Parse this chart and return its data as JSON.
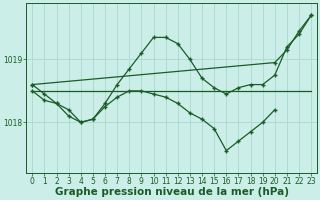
{
  "bg_color": "#cceee8",
  "grid_color": "#aad8cc",
  "line_color": "#1a5c28",
  "xlabel": "Graphe pression niveau de la mer (hPa)",
  "xlabel_fontsize": 7.5,
  "tick_fontsize": 5.5,
  "ylim": [
    1017.2,
    1019.9
  ],
  "xlim": [
    -0.5,
    23.5
  ],
  "yticks": [
    1018,
    1019
  ],
  "xticks": [
    0,
    1,
    2,
    3,
    4,
    5,
    6,
    7,
    8,
    9,
    10,
    11,
    12,
    13,
    14,
    15,
    16,
    17,
    18,
    19,
    20,
    21,
    22,
    23
  ],
  "series": [
    {
      "x": [
        0,
        20,
        21,
        22,
        23
      ],
      "y": [
        1018.6,
        1018.95,
        1019.15,
        1019.45,
        1019.7
      ],
      "marker": true
    },
    {
      "x": [
        0,
        1,
        2,
        3,
        4,
        5,
        6,
        7,
        8,
        9,
        10,
        11,
        12,
        13,
        14,
        15,
        16,
        17,
        18,
        19,
        20,
        21,
        22,
        23
      ],
      "y": [
        1018.6,
        1018.45,
        1018.3,
        1018.2,
        1018.0,
        1018.05,
        1018.3,
        1018.6,
        1018.85,
        1019.1,
        1019.35,
        1019.35,
        1019.25,
        1019.0,
        1018.7,
        1018.55,
        1018.45,
        1018.55,
        1018.6,
        1018.6,
        1018.75,
        1019.2,
        1019.4,
        1019.7
      ],
      "marker": true
    },
    {
      "x": [
        0,
        20,
        23
      ],
      "y": [
        1018.5,
        1018.5,
        1018.5
      ],
      "marker": false
    },
    {
      "x": [
        0,
        1,
        2,
        3,
        4,
        5,
        6,
        7,
        8,
        9,
        10,
        11,
        12,
        13,
        14,
        15,
        16,
        17,
        18,
        19,
        20
      ],
      "y": [
        1018.5,
        1018.35,
        1018.3,
        1018.1,
        1018.0,
        1018.05,
        1018.25,
        1018.4,
        1018.5,
        1018.5,
        1018.45,
        1018.4,
        1018.3,
        1018.15,
        1018.05,
        1017.9,
        1017.55,
        1017.7,
        1017.85,
        1018.0,
        1018.2
      ],
      "marker": true
    }
  ]
}
